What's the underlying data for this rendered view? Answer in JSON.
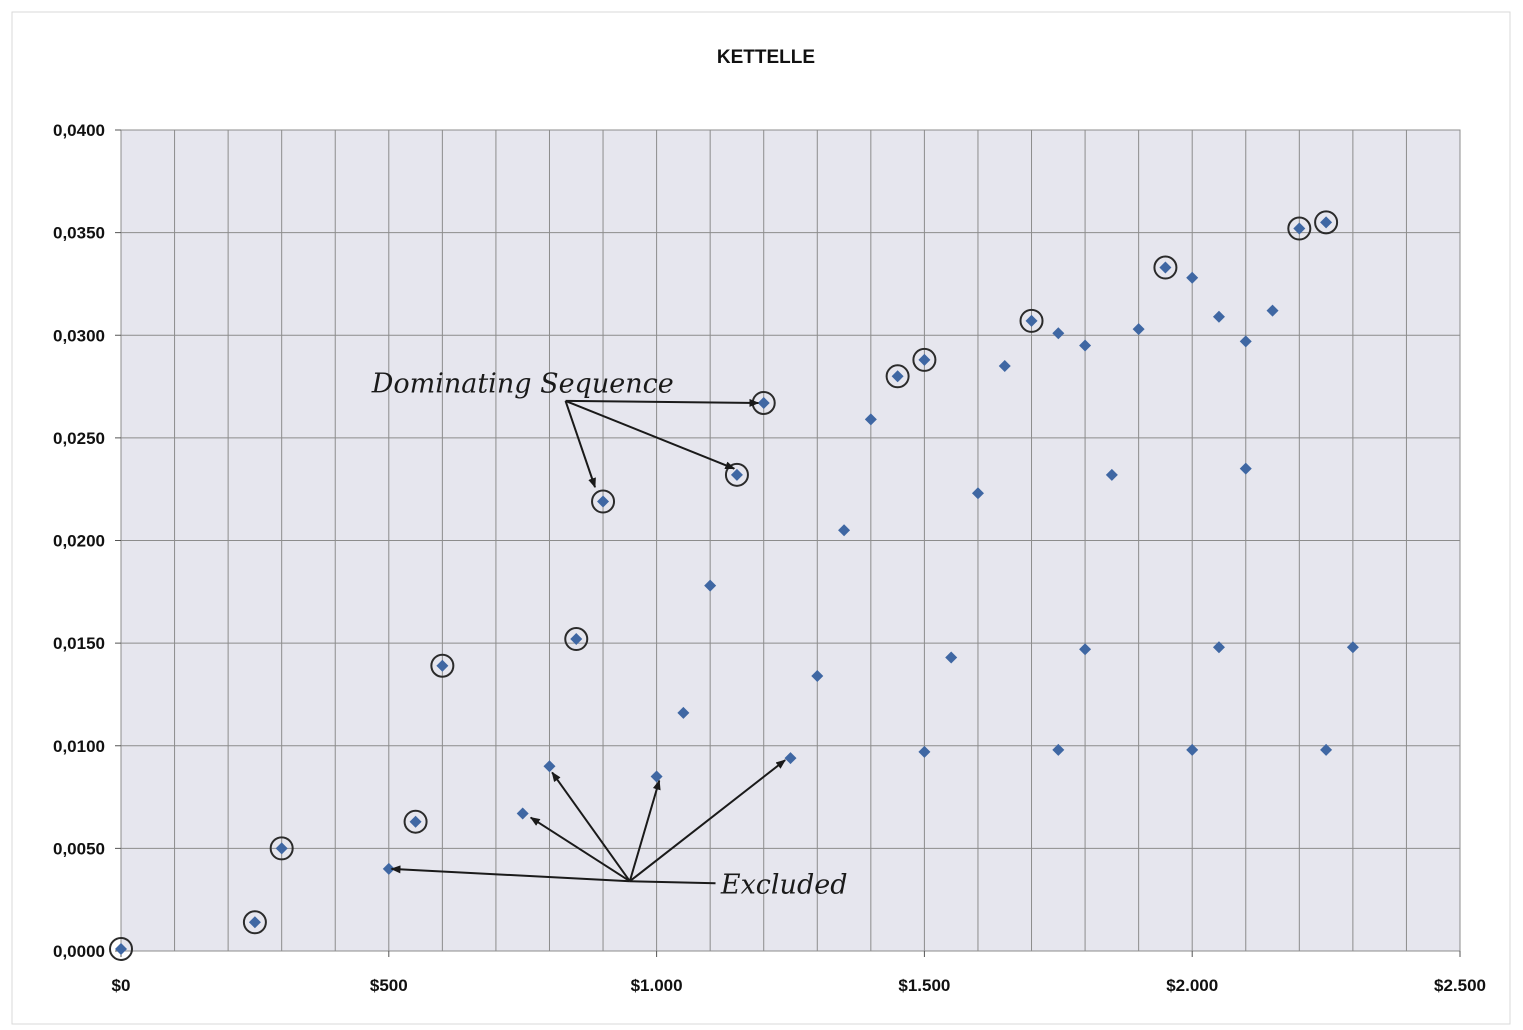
{
  "chart_data": {
    "type": "scatter",
    "title": "KETTELLE",
    "xlim": [
      0,
      2500
    ],
    "ylim": [
      0,
      0.04
    ],
    "x_ticks": [
      0,
      500,
      1000,
      1500,
      2000,
      2500
    ],
    "x_tick_labels": [
      "$0",
      "$500",
      "$1.000",
      "$1.500",
      "$2.000",
      "$2.500"
    ],
    "y_ticks": [
      0,
      0.005,
      0.01,
      0.015,
      0.02,
      0.025,
      0.03,
      0.035,
      0.04
    ],
    "y_tick_labels": [
      "0,0000",
      "0,0050",
      "0,0100",
      "0,0150",
      "0,0200",
      "0,0250",
      "0,0300",
      "0,0350",
      "0,0400"
    ],
    "grid": true,
    "marker_color": "#3f67a3",
    "series": [
      {
        "points": [
          [
            0,
            0.0001
          ],
          [
            250,
            0.0014
          ],
          [
            300,
            0.005
          ],
          [
            500,
            0.004
          ],
          [
            550,
            0.0063
          ],
          [
            600,
            0.0139
          ],
          [
            750,
            0.0067
          ],
          [
            800,
            0.009
          ],
          [
            850,
            0.0152
          ],
          [
            900,
            0.0219
          ],
          [
            1000,
            0.0085
          ],
          [
            1050,
            0.0116
          ],
          [
            1100,
            0.0178
          ],
          [
            1150,
            0.0232
          ],
          [
            1200,
            0.0267
          ],
          [
            1250,
            0.0094
          ],
          [
            1300,
            0.0134
          ],
          [
            1350,
            0.0205
          ],
          [
            1400,
            0.0259
          ],
          [
            1450,
            0.028
          ],
          [
            1500,
            0.0288
          ],
          [
            1500,
            0.0097
          ],
          [
            1550,
            0.0143
          ],
          [
            1600,
            0.0223
          ],
          [
            1650,
            0.0285
          ],
          [
            1700,
            0.0307
          ],
          [
            1750,
            0.0301
          ],
          [
            1750,
            0.0098
          ],
          [
            1800,
            0.0295
          ],
          [
            1800,
            0.0147
          ],
          [
            1850,
            0.0232
          ],
          [
            1900,
            0.0303
          ],
          [
            1950,
            0.0333
          ],
          [
            2000,
            0.0328
          ],
          [
            2000,
            0.0098
          ],
          [
            2050,
            0.0309
          ],
          [
            2050,
            0.0148
          ],
          [
            2100,
            0.0297
          ],
          [
            2100,
            0.0235
          ],
          [
            2150,
            0.0312
          ],
          [
            2200,
            0.0352
          ],
          [
            2250,
            0.0355
          ],
          [
            2250,
            0.0098
          ],
          [
            2300,
            0.0148
          ]
        ]
      }
    ],
    "circled_points": [
      [
        0,
        0.0001
      ],
      [
        250,
        0.0014
      ],
      [
        300,
        0.005
      ],
      [
        550,
        0.0063
      ],
      [
        600,
        0.0139
      ],
      [
        850,
        0.0152
      ],
      [
        900,
        0.0219
      ],
      [
        1150,
        0.0232
      ],
      [
        1200,
        0.0267
      ],
      [
        1450,
        0.028
      ],
      [
        1500,
        0.0288
      ],
      [
        1700,
        0.0307
      ],
      [
        1950,
        0.0333
      ],
      [
        2200,
        0.0352
      ],
      [
        2250,
        0.0355
      ]
    ],
    "annotations": [
      {
        "text": "Dominating Sequence",
        "text_at": [
          750,
          0.0272
        ],
        "arrow_from": [
          830,
          0.0268
        ],
        "arrows_to": [
          [
            885,
            0.0226
          ],
          [
            1145,
            0.0235
          ],
          [
            1190,
            0.0267
          ]
        ]
      },
      {
        "text": "Excluded",
        "text_at": [
          1120,
          0.0028
        ],
        "arrow_from": [
          950,
          0.0034
        ],
        "line_to": [
          1110,
          0.0033
        ],
        "arrows_to": [
          [
            505,
            0.004
          ],
          [
            765,
            0.0065
          ],
          [
            805,
            0.0087
          ],
          [
            1005,
            0.0083
          ],
          [
            1240,
            0.0093
          ]
        ]
      }
    ]
  }
}
